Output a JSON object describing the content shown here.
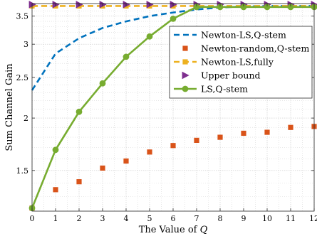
{
  "chart_data": {
    "type": "line",
    "xlabel_prefix": "The Value of ",
    "xlabel_var": "Q",
    "ylabel": "Sum Channel Gain",
    "x": [
      0,
      1,
      2,
      3,
      4,
      5,
      6,
      7,
      8,
      9,
      10,
      11,
      12
    ],
    "xticks": [
      "0",
      "1",
      "2",
      "3",
      "4",
      "5",
      "6",
      "7",
      "8",
      "9",
      "10",
      "11",
      "12"
    ],
    "xlim": [
      0,
      12
    ],
    "ylim": [
      1.2,
      3.75
    ],
    "yscale": "log",
    "yticks": [
      {
        "value": 1.5,
        "label": "1.5"
      },
      {
        "value": 2,
        "label": "2"
      },
      {
        "value": 2.5,
        "label": "2.5"
      },
      {
        "value": 3,
        "label": "3"
      },
      {
        "value": 3.5,
        "label": "3.5"
      }
    ],
    "grid": true,
    "legend_position": "top-right",
    "series": [
      {
        "name": "Newton-LS,Q-stem",
        "style": "dashed",
        "marker": "none",
        "color": "#0072BD",
        "values": [
          2.33,
          2.85,
          3.1,
          3.28,
          3.4,
          3.5,
          3.57,
          3.63,
          3.67,
          3.69,
          3.7,
          3.7,
          3.7
        ]
      },
      {
        "name": "Newton-random,Q-stem",
        "style": "none",
        "marker": "square",
        "color": "#D95319",
        "values": [
          1.22,
          1.35,
          1.41,
          1.52,
          1.58,
          1.66,
          1.72,
          1.77,
          1.8,
          1.84,
          1.85,
          1.9,
          1.91
        ]
      },
      {
        "name": "Newton-LS,fully",
        "style": "dashed",
        "marker": "square",
        "color": "#EDB120",
        "values": [
          3.7,
          3.7,
          3.7,
          3.7,
          3.7,
          3.7,
          3.7,
          3.7,
          3.7,
          3.7,
          3.7,
          3.7,
          3.7
        ]
      },
      {
        "name": "Upper bound",
        "style": "none",
        "marker": "triangle-right",
        "color": "#7E2F8E",
        "values": [
          3.73,
          3.73,
          3.73,
          3.73,
          3.73,
          3.73,
          3.73,
          3.73,
          3.73,
          3.73,
          3.73,
          3.73,
          3.73
        ]
      },
      {
        "name": "LS,Q-stem",
        "style": "solid",
        "marker": "circle",
        "color": "#77AC30",
        "values": [
          1.22,
          1.68,
          2.07,
          2.42,
          2.8,
          3.13,
          3.45,
          3.68,
          3.68,
          3.68,
          3.68,
          3.68,
          3.68
        ]
      }
    ]
  }
}
